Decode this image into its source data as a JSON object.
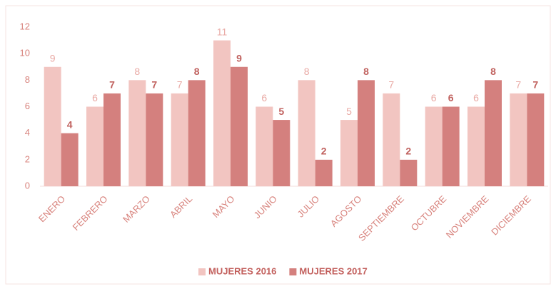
{
  "chart_data": {
    "type": "bar",
    "categories": [
      "ENERO",
      "FEBRERO",
      "MARZO",
      "ABRIL",
      "MAYO",
      "JUNIO",
      "JULIO",
      "AGOSTO",
      "SEPTIEMBRE",
      "OCTUBRE",
      "NOVIEMBRE",
      "DICIEMBRE"
    ],
    "series": [
      {
        "name": "MUJERES 2016",
        "color": "#f2c5c1",
        "values": [
          9,
          6,
          8,
          7,
          11,
          6,
          8,
          5,
          7,
          6,
          6,
          7
        ]
      },
      {
        "name": "MUJERES 2017",
        "color": "#d4807e",
        "values": [
          4,
          7,
          7,
          8,
          9,
          5,
          2,
          8,
          2,
          6,
          8,
          7
        ]
      }
    ],
    "ylim": [
      0,
      12
    ],
    "yticks": [
      0,
      2,
      4,
      6,
      8,
      10,
      12
    ],
    "grid": false,
    "legend": "bottom"
  }
}
